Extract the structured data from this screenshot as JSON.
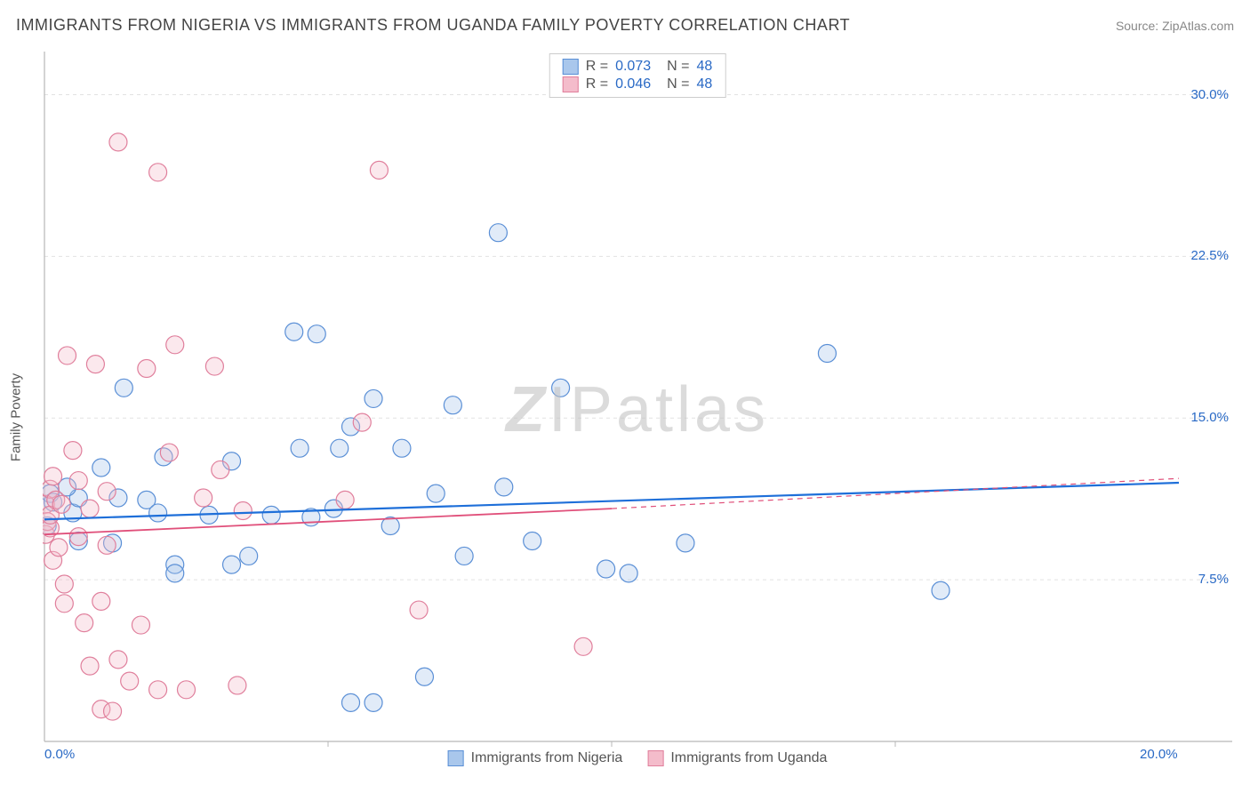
{
  "title": "IMMIGRANTS FROM NIGERIA VS IMMIGRANTS FROM UGANDA FAMILY POVERTY CORRELATION CHART",
  "source": "Source: ZipAtlas.com",
  "watermark": "ZIPatlas",
  "y_axis_label": "Family Poverty",
  "chart": {
    "type": "scatter",
    "xlim": [
      0,
      20
    ],
    "ylim": [
      0,
      32
    ],
    "x_ticks": [
      {
        "v": 0,
        "label": "0.0%"
      },
      {
        "v": 20,
        "label": "20.0%"
      }
    ],
    "y_ticks": [
      {
        "v": 7.5,
        "label": "7.5%"
      },
      {
        "v": 15.0,
        "label": "15.0%"
      },
      {
        "v": 22.5,
        "label": "22.5%"
      },
      {
        "v": 30.0,
        "label": "30.0%"
      }
    ],
    "x_gridlines": [
      5,
      10,
      15
    ],
    "background_color": "#ffffff",
    "grid_color": "#e2e2e2",
    "grid_dash": "4 4",
    "axis_color": "#b8b8b8",
    "marker_radius": 10,
    "marker_stroke_width": 1.2,
    "marker_fill_opacity": 0.35,
    "series": [
      {
        "name": "Immigrants from Nigeria",
        "color_stroke": "#5a8fd6",
        "color_fill": "#a9c7ec",
        "trend_color": "#1e6fd9",
        "trend_width": 2.2,
        "trend_dash": "none",
        "R": "0.073",
        "N": "48",
        "trendline": {
          "x1": 0,
          "y1": 10.3,
          "x2": 20,
          "y2": 12.0
        },
        "points": [
          [
            0.05,
            10.0
          ],
          [
            0.1,
            11.5
          ],
          [
            0.15,
            11.1
          ],
          [
            0.5,
            10.6
          ],
          [
            0.6,
            11.3
          ],
          [
            0.4,
            11.8
          ],
          [
            0.6,
            9.3
          ],
          [
            1.0,
            12.7
          ],
          [
            1.3,
            11.3
          ],
          [
            1.4,
            16.4
          ],
          [
            1.8,
            11.2
          ],
          [
            1.2,
            9.2
          ],
          [
            2.0,
            10.6
          ],
          [
            2.1,
            13.2
          ],
          [
            2.3,
            8.2
          ],
          [
            2.3,
            7.8
          ],
          [
            2.9,
            10.5
          ],
          [
            3.3,
            13.0
          ],
          [
            3.3,
            8.2
          ],
          [
            3.6,
            8.6
          ],
          [
            4.0,
            10.5
          ],
          [
            4.4,
            19.0
          ],
          [
            4.5,
            13.6
          ],
          [
            4.7,
            10.4
          ],
          [
            4.8,
            18.9
          ],
          [
            5.1,
            10.8
          ],
          [
            5.2,
            13.6
          ],
          [
            5.4,
            14.6
          ],
          [
            5.4,
            1.8
          ],
          [
            5.8,
            1.8
          ],
          [
            5.8,
            15.9
          ],
          [
            6.3,
            13.6
          ],
          [
            6.1,
            10.0
          ],
          [
            6.7,
            3.0
          ],
          [
            6.9,
            11.5
          ],
          [
            7.2,
            15.6
          ],
          [
            7.4,
            8.6
          ],
          [
            8.0,
            23.6
          ],
          [
            8.1,
            11.8
          ],
          [
            8.6,
            9.3
          ],
          [
            9.1,
            16.4
          ],
          [
            9.9,
            8.0
          ],
          [
            10.3,
            7.8
          ],
          [
            11.3,
            9.2
          ],
          [
            13.8,
            18.0
          ],
          [
            15.8,
            7.0
          ]
        ]
      },
      {
        "name": "Immigrants from Uganda",
        "color_stroke": "#e07f9c",
        "color_fill": "#f4bccb",
        "trend_color": "#e04f7a",
        "trend_width": 1.8,
        "trend_dash": "none",
        "R": "0.046",
        "N": "48",
        "trendline": {
          "x1": 0,
          "y1": 9.6,
          "x2": 10,
          "y2": 10.8
        },
        "trendline_ext": {
          "x1": 10,
          "y1": 10.8,
          "x2": 20,
          "y2": 12.2
        },
        "points": [
          [
            0.02,
            9.6
          ],
          [
            0.02,
            11.0
          ],
          [
            0.05,
            10.2
          ],
          [
            0.1,
            11.7
          ],
          [
            0.1,
            9.9
          ],
          [
            0.15,
            12.3
          ],
          [
            0.15,
            8.4
          ],
          [
            0.1,
            10.5
          ],
          [
            0.2,
            11.2
          ],
          [
            0.3,
            11.0
          ],
          [
            0.25,
            9.0
          ],
          [
            0.35,
            7.3
          ],
          [
            0.35,
            6.4
          ],
          [
            0.4,
            17.9
          ],
          [
            0.5,
            13.5
          ],
          [
            0.6,
            12.1
          ],
          [
            0.6,
            9.5
          ],
          [
            0.7,
            5.5
          ],
          [
            0.8,
            10.8
          ],
          [
            0.8,
            3.5
          ],
          [
            0.9,
            17.5
          ],
          [
            1.0,
            6.5
          ],
          [
            1.0,
            1.5
          ],
          [
            1.1,
            11.6
          ],
          [
            1.1,
            9.1
          ],
          [
            1.2,
            1.4
          ],
          [
            1.3,
            27.8
          ],
          [
            1.3,
            3.8
          ],
          [
            1.5,
            2.8
          ],
          [
            1.7,
            5.4
          ],
          [
            1.8,
            17.3
          ],
          [
            2.0,
            2.4
          ],
          [
            2.0,
            26.4
          ],
          [
            2.2,
            13.4
          ],
          [
            2.3,
            18.4
          ],
          [
            2.5,
            2.4
          ],
          [
            2.8,
            11.3
          ],
          [
            3.0,
            17.4
          ],
          [
            3.1,
            12.6
          ],
          [
            3.4,
            2.6
          ],
          [
            3.5,
            10.7
          ],
          [
            5.3,
            11.2
          ],
          [
            5.6,
            14.8
          ],
          [
            5.9,
            26.5
          ],
          [
            6.6,
            6.1
          ],
          [
            9.5,
            4.4
          ]
        ]
      }
    ]
  },
  "legend_top": [
    {
      "swatch_fill": "#a9c7ec",
      "swatch_stroke": "#5a8fd6",
      "R": "0.073",
      "N": "48"
    },
    {
      "swatch_fill": "#f4bccb",
      "swatch_stroke": "#e07f9c",
      "R": "0.046",
      "N": "48"
    }
  ],
  "legend_bottom": [
    {
      "swatch_fill": "#a9c7ec",
      "swatch_stroke": "#5a8fd6",
      "label": "Immigrants from Nigeria"
    },
    {
      "swatch_fill": "#f4bccb",
      "swatch_stroke": "#e07f9c",
      "label": "Immigrants from Uganda"
    }
  ]
}
